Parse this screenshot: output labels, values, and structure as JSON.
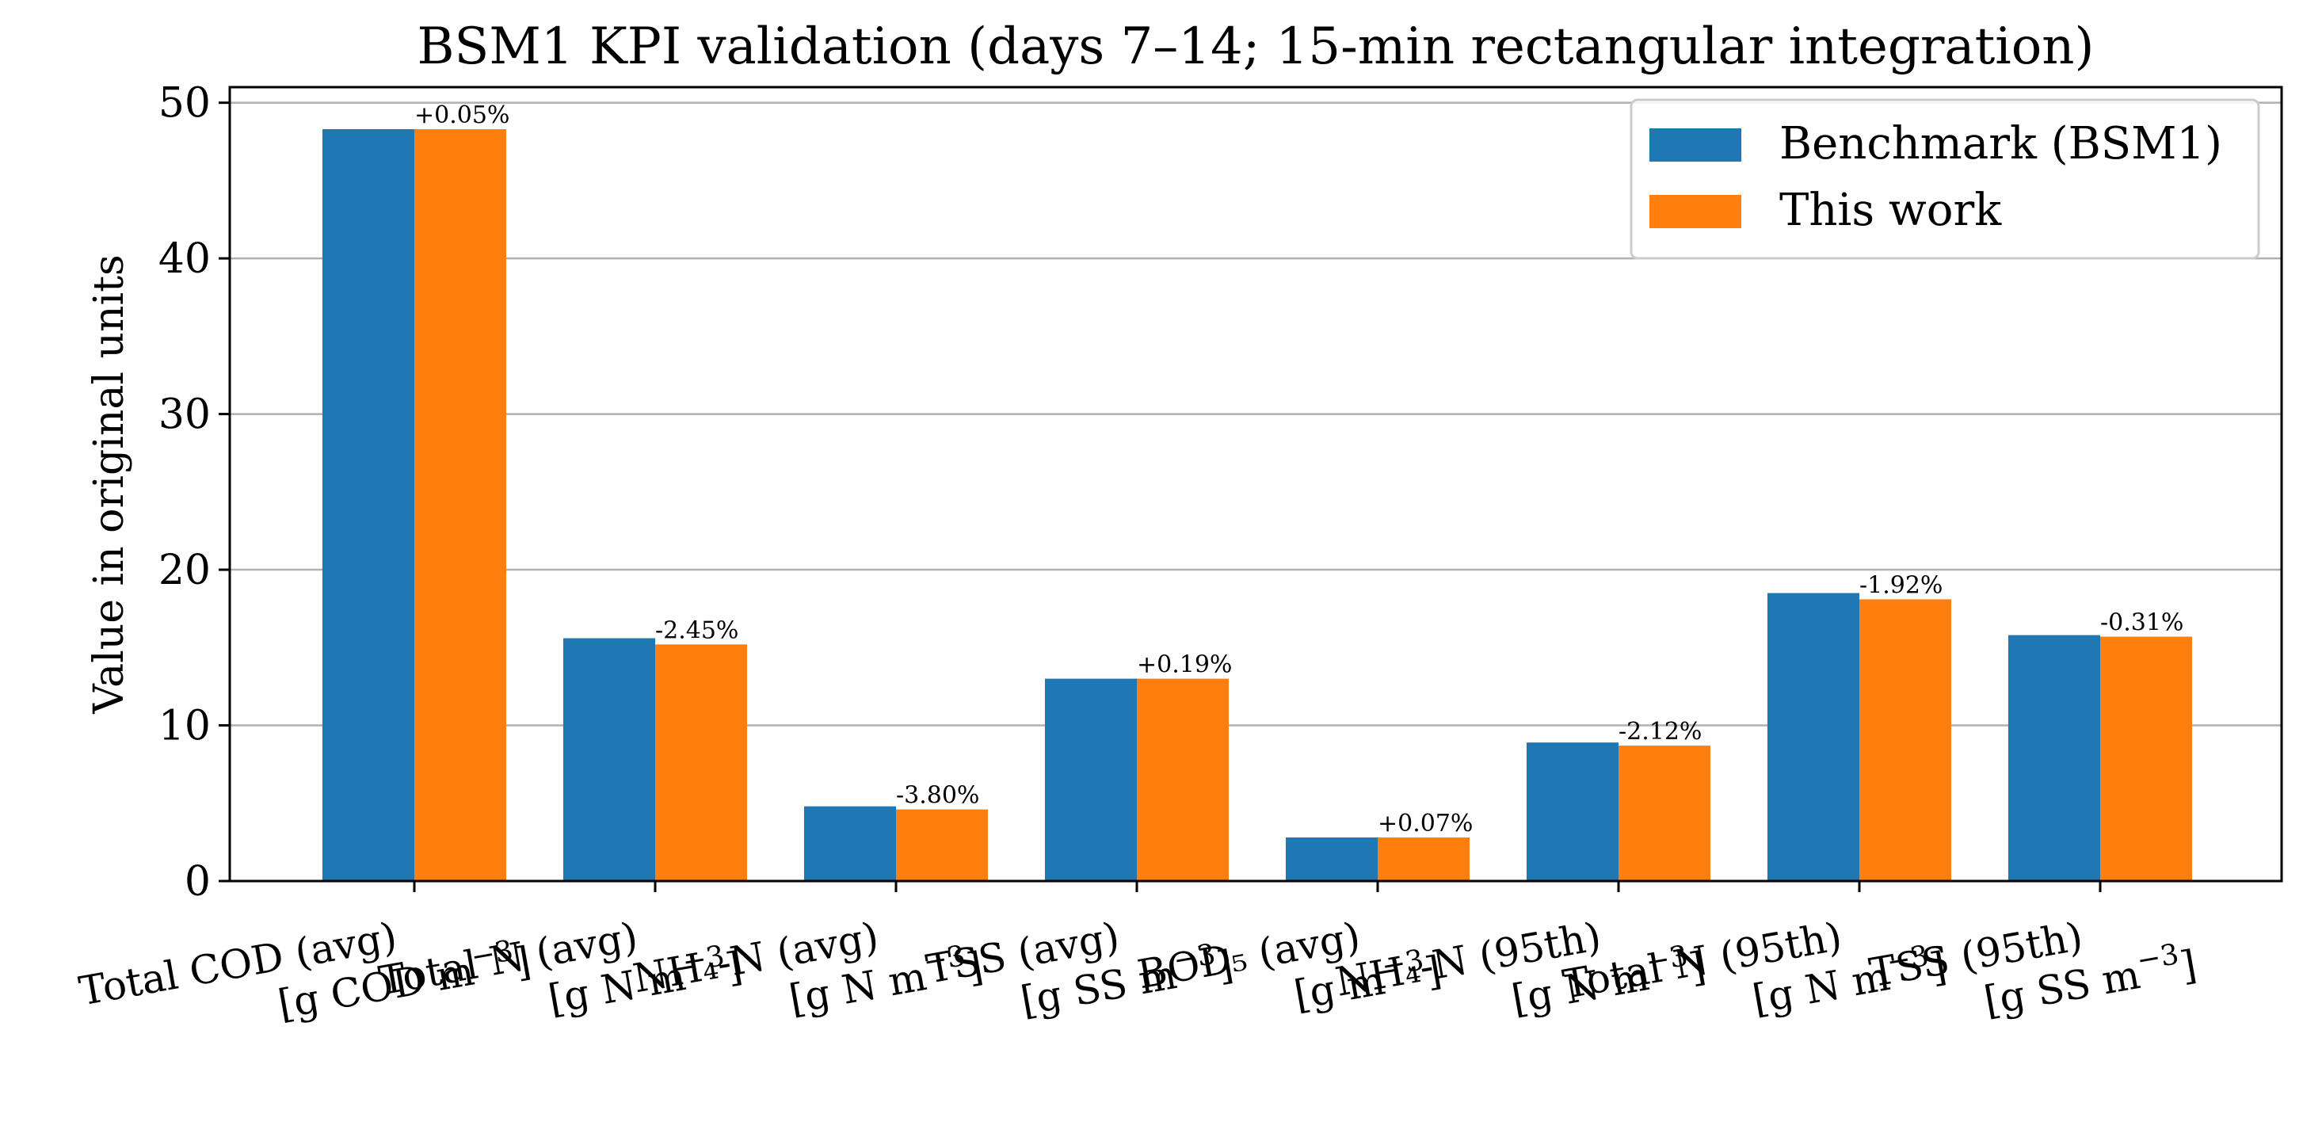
{
  "chart_data": {
    "type": "bar",
    "title": "BSM1 KPI validation (days 7–14; 15-min rectangular integration)",
    "ylabel": "Value in original units",
    "xlabel": "",
    "ylim": [
      0,
      51
    ],
    "yticks": [
      0,
      10,
      20,
      30,
      40,
      50
    ],
    "grid": "y",
    "legend_position": "top-right",
    "categories": [
      {
        "name": "Total COD (avg)",
        "unit_base": "[g COD m",
        "unit_sup": "−3",
        "unit_end": "]"
      },
      {
        "name": "Total N (avg)",
        "unit_base": "[g N m",
        "unit_sup": "−3",
        "unit_end": "]"
      },
      {
        "name": "NH₄-N (avg)",
        "unit_base": "[g N m",
        "unit_sup": "−3",
        "unit_end": "]"
      },
      {
        "name": "TSS (avg)",
        "unit_base": "[g SS m",
        "unit_sup": "−3",
        "unit_end": "]"
      },
      {
        "name": "BOD₅ (avg)",
        "unit_base": "[g m",
        "unit_sup": "−3",
        "unit_end": "]"
      },
      {
        "name": "NH₄-N (95th)",
        "unit_base": "[g N m",
        "unit_sup": "−3",
        "unit_end": "]"
      },
      {
        "name": "Total N (95th)",
        "unit_base": "[g N m",
        "unit_sup": "−3",
        "unit_end": "]"
      },
      {
        "name": "TSS (95th)",
        "unit_base": "[g SS m",
        "unit_sup": "−3",
        "unit_end": "]"
      }
    ],
    "series": [
      {
        "name": "Benchmark (BSM1)",
        "color": "#1f77b4",
        "values": [
          48.3,
          15.6,
          4.8,
          13.0,
          2.8,
          8.9,
          18.5,
          15.8
        ]
      },
      {
        "name": "This work",
        "color": "#ff7f0e",
        "values": [
          48.3,
          15.2,
          4.6,
          13.0,
          2.8,
          8.7,
          18.1,
          15.7
        ]
      }
    ],
    "annotations": [
      "+0.05%",
      "-2.45%",
      "-3.80%",
      "+0.19%",
      "+0.07%",
      "-2.12%",
      "-1.92%",
      "-0.31%"
    ]
  }
}
